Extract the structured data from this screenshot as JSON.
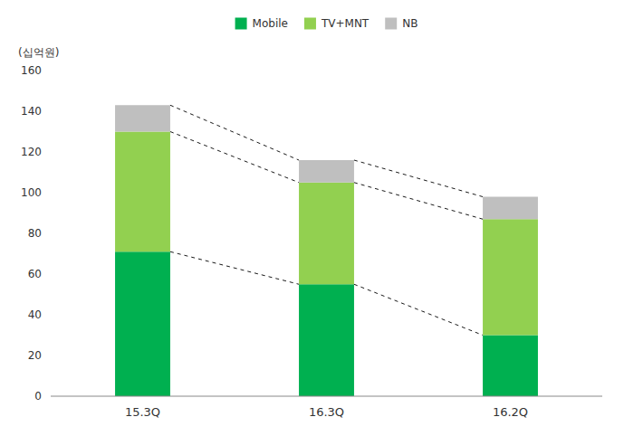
{
  "chart_data": {
    "type": "bar",
    "stacked": true,
    "categories": [
      "15.3Q",
      "16.3Q",
      "16.2Q"
    ],
    "series": [
      {
        "name": "Mobile",
        "color": "#00B050",
        "values": [
          71,
          55,
          30
        ]
      },
      {
        "name": "TV+MNT",
        "color": "#92D050",
        "values": [
          59,
          50,
          57
        ]
      },
      {
        "name": "NB",
        "color": "#BFBFBF",
        "values": [
          13,
          11,
          11
        ]
      }
    ],
    "ylabel": "(십억원)",
    "ylim": [
      0,
      160
    ],
    "yticks": [
      0,
      20,
      40,
      60,
      80,
      100,
      120,
      140,
      160
    ],
    "grid": false,
    "legend": "top"
  }
}
